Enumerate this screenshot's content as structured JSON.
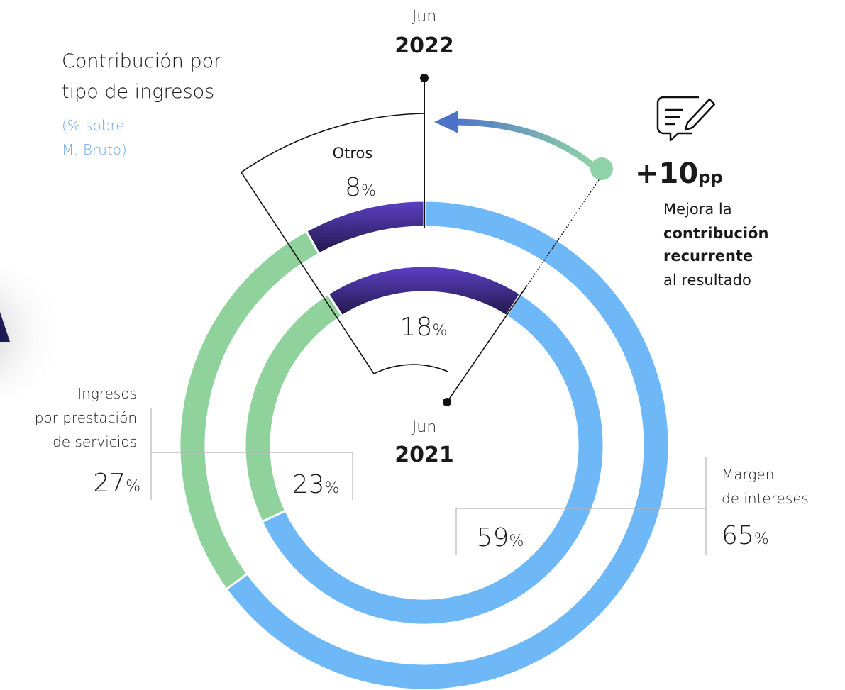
{
  "chart_data": {
    "type": "donut",
    "title_lines": [
      "Contribución por",
      "tipo de ingresos"
    ],
    "subtitle_lines": [
      "(% sobre",
      "M. Bruto)"
    ],
    "categories": [
      [
        "Margen",
        "de intereses"
      ],
      [
        "Ingresos",
        "por prestación",
        "de servicios"
      ],
      [
        "Otros"
      ]
    ],
    "colors": [
      "#6fb8f8",
      "#90d29b",
      "#4a34a6"
    ],
    "rings": [
      {
        "period": "Jun",
        "year": "2022",
        "values": [
          65,
          27,
          8
        ],
        "value_labels": [
          "65%",
          "27%",
          "8%"
        ]
      },
      {
        "period": "Jun",
        "year": "2021",
        "values": [
          59,
          23,
          18
        ],
        "value_labels": [
          "59%",
          "23%",
          "18%"
        ]
      }
    ],
    "annotation": {
      "delta": "+10",
      "delta_unit": "pp",
      "note_lines": [
        "Mejora la",
        "contribución",
        "recurrente",
        "al resultado"
      ]
    }
  }
}
